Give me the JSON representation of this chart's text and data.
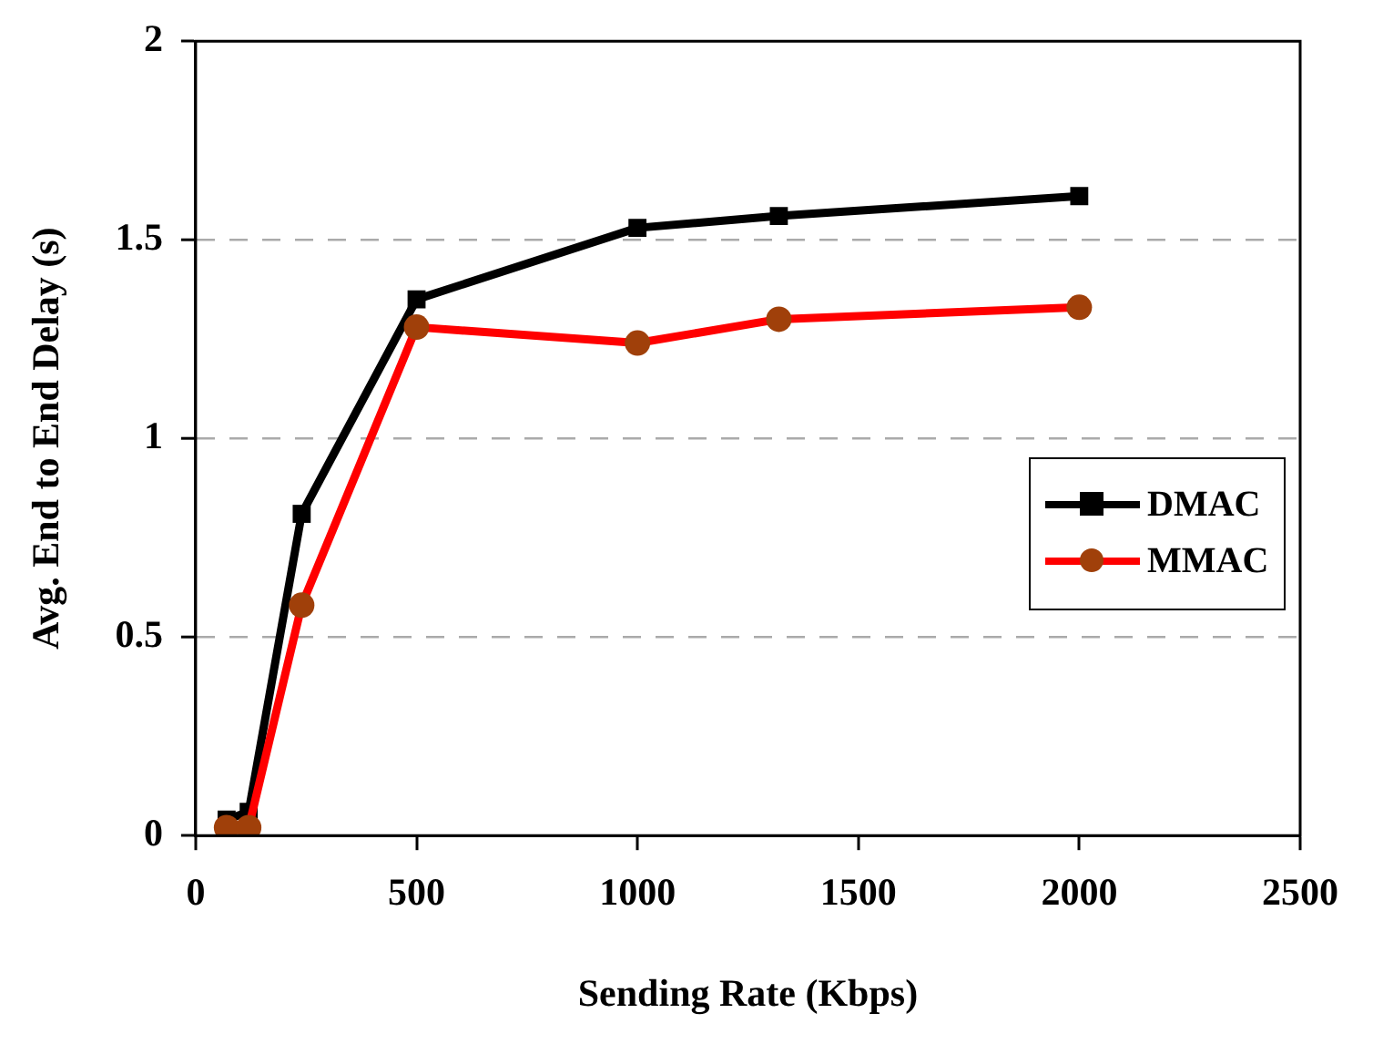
{
  "chart_data": {
    "type": "line",
    "xlabel": "Sending Rate (Kbps)",
    "ylabel": "Avg. End to End Delay (s)",
    "x": [
      70,
      120,
      240,
      500,
      1000,
      1320,
      2000
    ],
    "series": [
      {
        "name": "DMAC",
        "color": "#000000",
        "marker": "square",
        "values": [
          0.04,
          0.06,
          0.81,
          1.35,
          1.53,
          1.56,
          1.61
        ]
      },
      {
        "name": "MMAC",
        "color": "#ff0000",
        "marker": "circle",
        "values": [
          0.02,
          0.02,
          0.58,
          1.28,
          1.24,
          1.3,
          1.33
        ]
      }
    ],
    "xlim": [
      0,
      2500
    ],
    "xticks": [
      0,
      500,
      1000,
      1500,
      2000,
      2500
    ],
    "ylim": [
      0,
      2
    ],
    "yticks": [
      0,
      0.5,
      1,
      1.5,
      2
    ],
    "grid": "y",
    "legend": "right"
  }
}
